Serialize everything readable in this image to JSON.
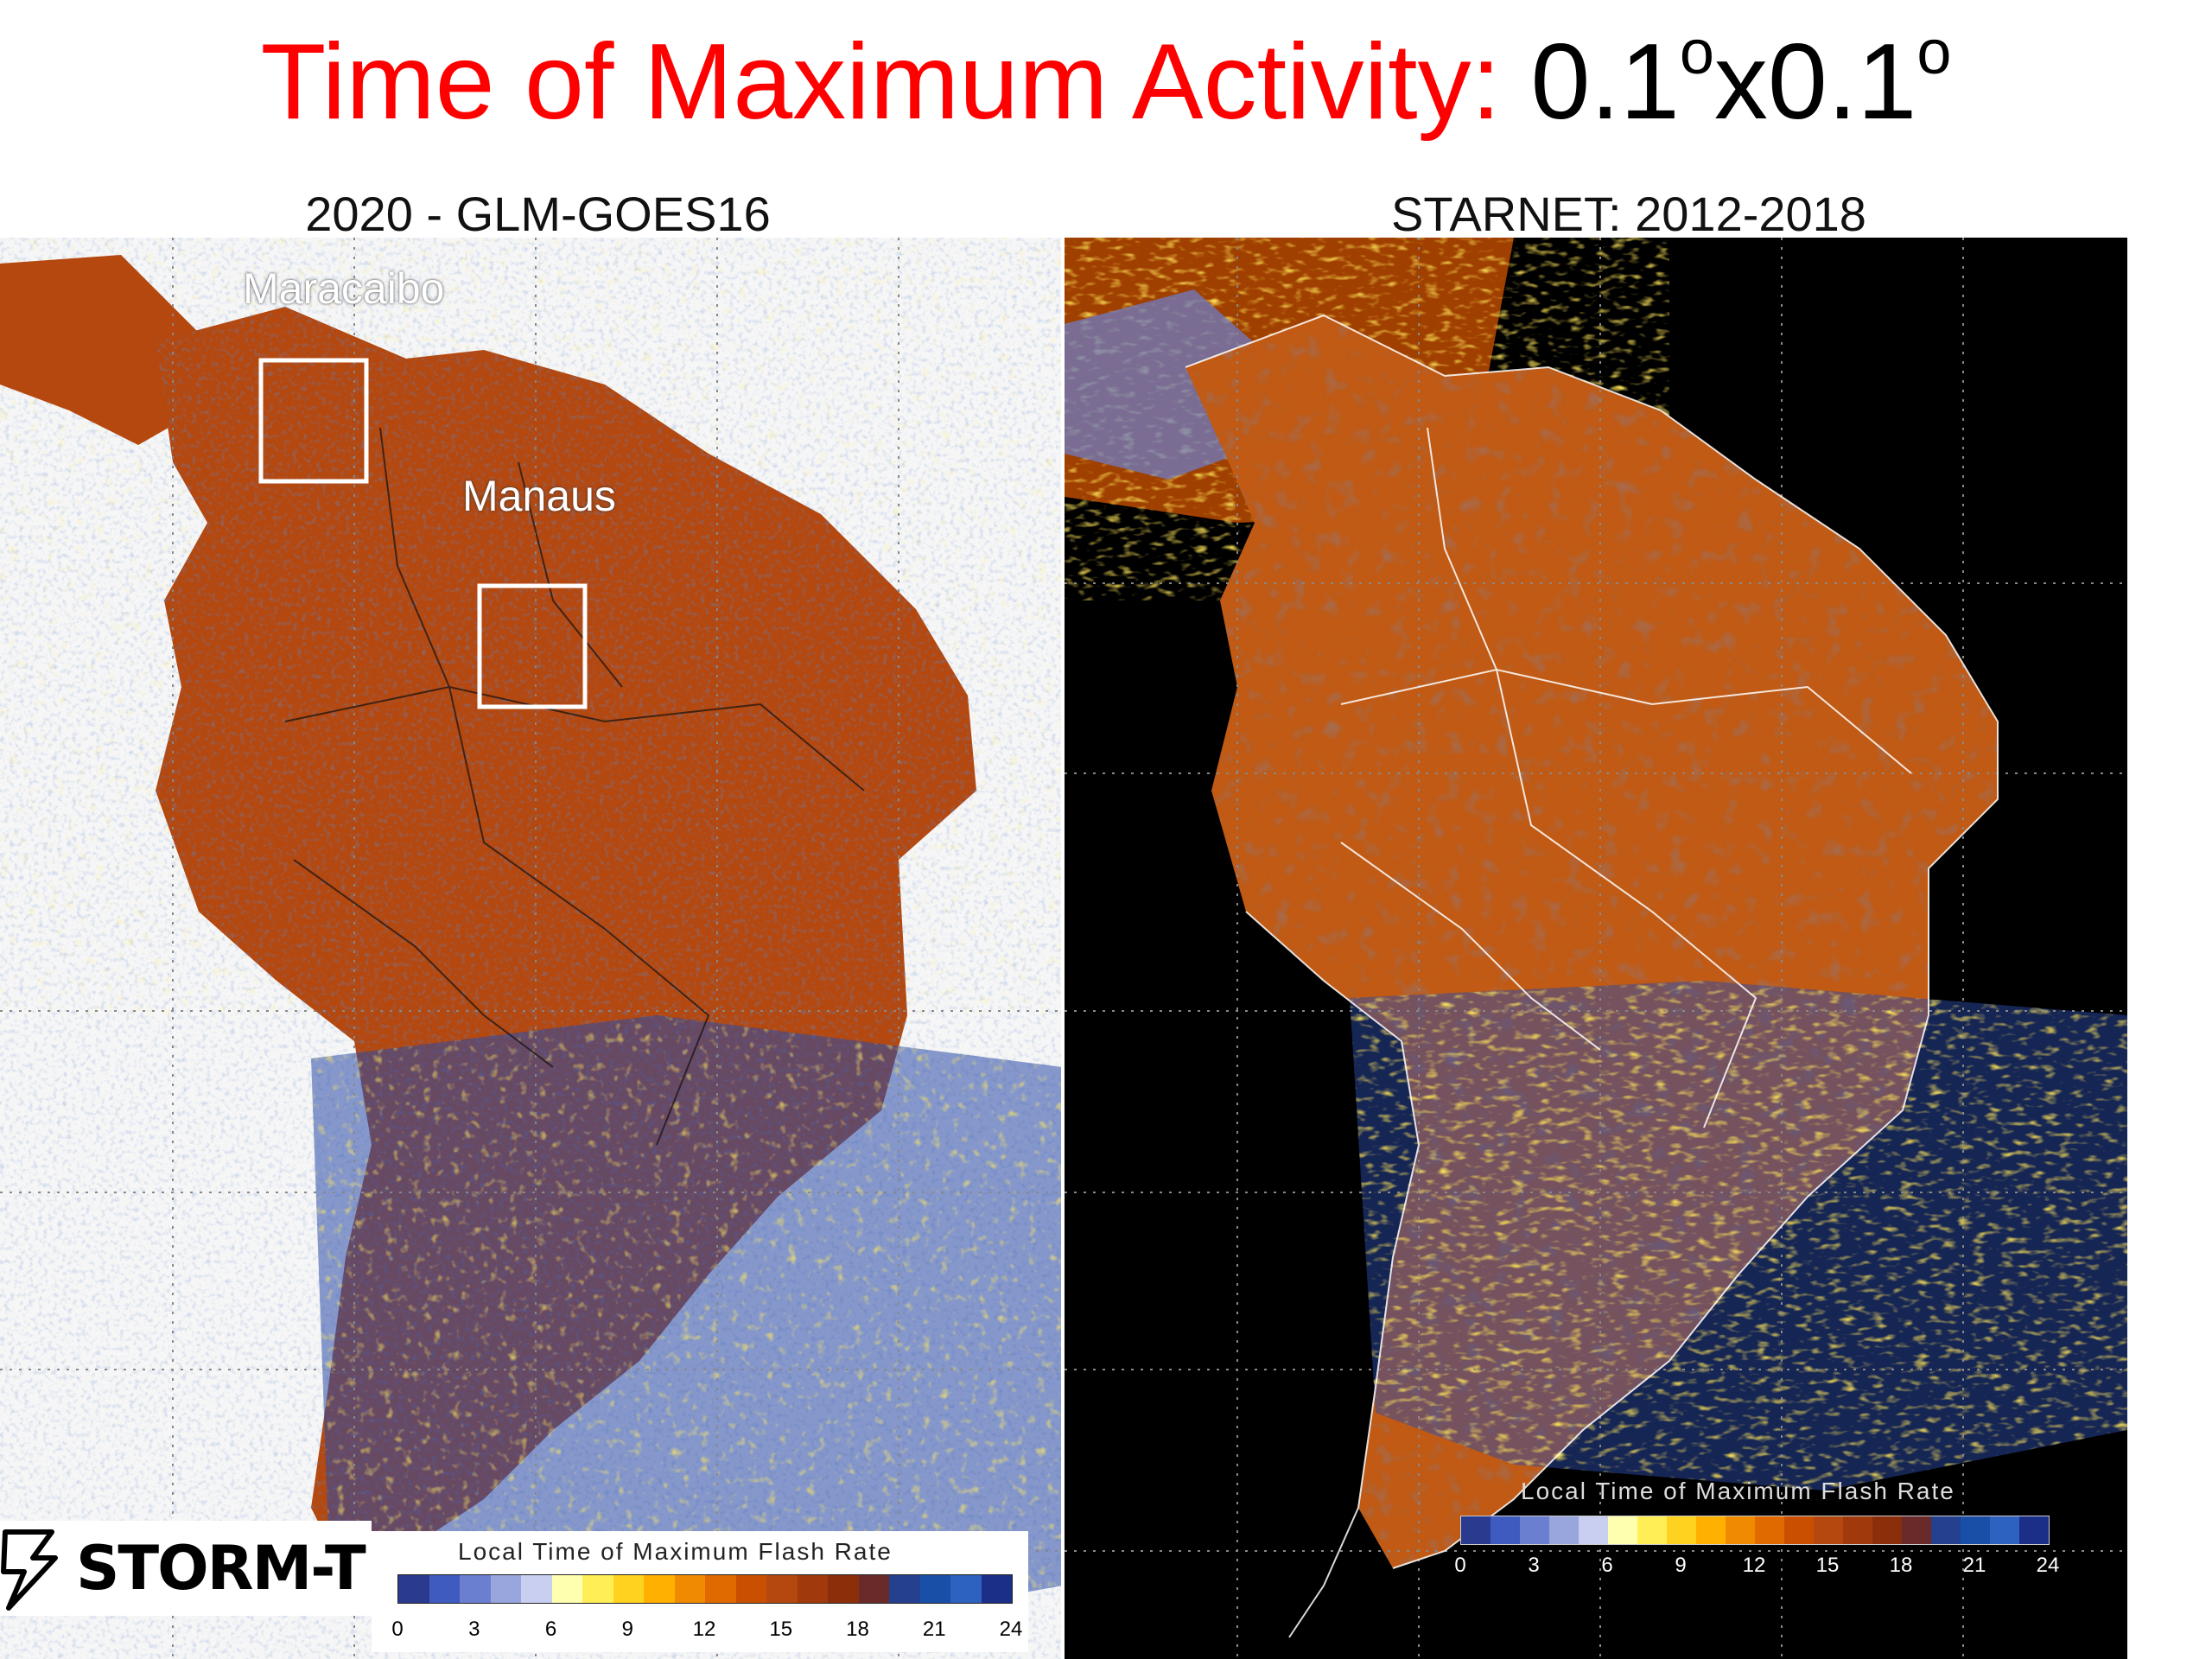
{
  "title": {
    "text_red": "Time of Maximum Activity:",
    "text_black": "0.1",
    "sup1": "o",
    "mid": "x0.1",
    "sup2": "o"
  },
  "panels": [
    {
      "title": "2020 - GLM-GOES16",
      "background": "#f6f6f6",
      "boxes": [
        {
          "label": "Maracaibo"
        },
        {
          "label": "Manaus"
        }
      ],
      "legend": {
        "title": "Local Time of Maximum Flash Rate",
        "ticks": [
          "0",
          "3",
          "6",
          "9",
          "12",
          "15",
          "18",
          "21",
          "24"
        ]
      }
    },
    {
      "title": "STARNET: 2012-2018",
      "background": "#000000",
      "legend": {
        "title": "Local Time of Maximum Flash Rate",
        "ticks": [
          "0",
          "3",
          "6",
          "9",
          "12",
          "15",
          "18",
          "21",
          "24"
        ]
      }
    }
  ],
  "logo": {
    "text": "STORM-T"
  },
  "colors": {
    "land": "#b4480f",
    "blue": "#1f3f9e",
    "yellow": "#ffd21f",
    "title_red": "#ff0000"
  },
  "colorbar": [
    "#2a3a8f",
    "#3f5bbf",
    "#6a7fd0",
    "#98a6dd",
    "#c8cff0",
    "#ffffb0",
    "#ffee55",
    "#ffd21f",
    "#ffb000",
    "#f08a00",
    "#e06a00",
    "#c85000",
    "#b4480f",
    "#a03a0c",
    "#8a2f0a",
    "#6a2a2a",
    "#24408f",
    "#1a4fa8",
    "#2d62c0",
    "#1b2f88"
  ]
}
